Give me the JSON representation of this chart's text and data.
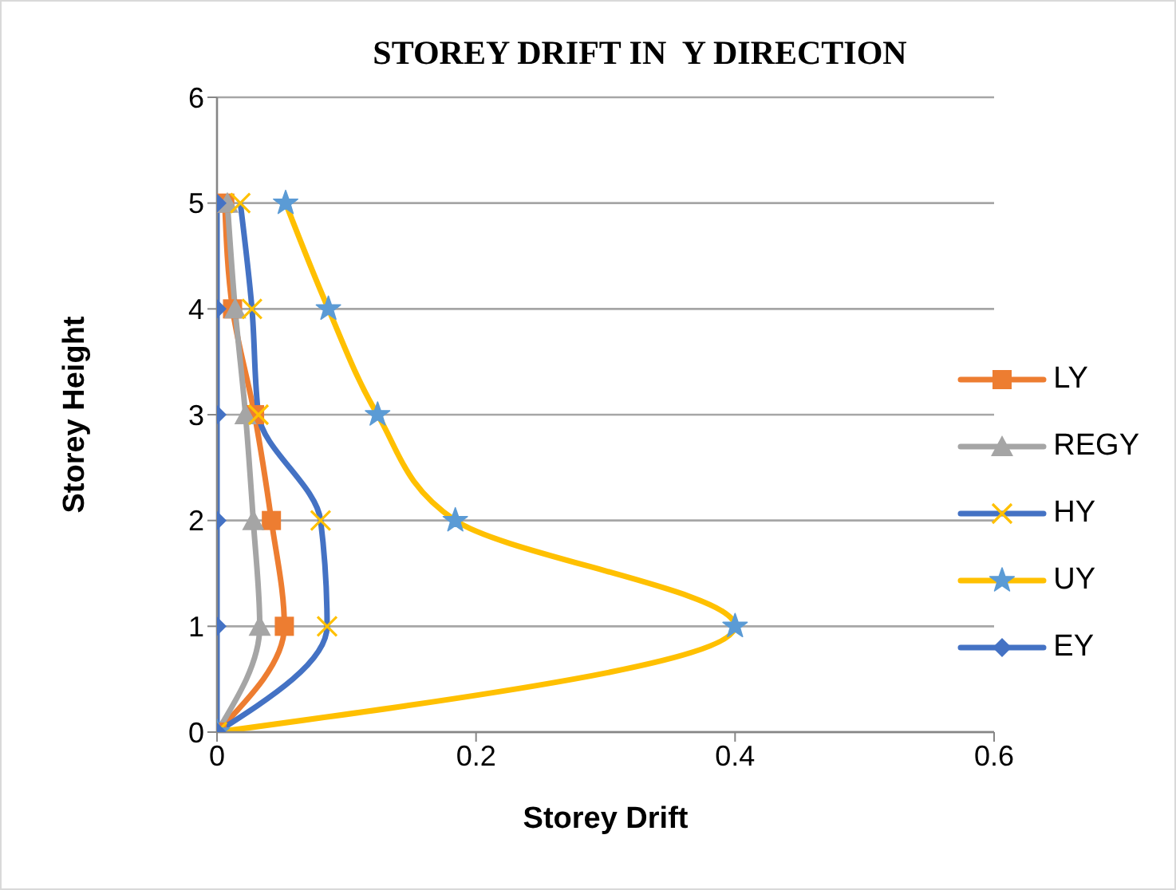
{
  "chart_data": {
    "type": "line",
    "title": "STOREY DRIFT IN  Y DIRECTION",
    "xlabel": "Storey Drift",
    "ylabel": "Storey Height",
    "xlim": [
      0,
      0.6
    ],
    "xticks": [
      0,
      0.2,
      0.4,
      0.6
    ],
    "ylim": [
      0,
      6
    ],
    "yticks": [
      0,
      1,
      2,
      3,
      4,
      5,
      6
    ],
    "grid": "y",
    "legend": "right",
    "series": [
      {
        "name": "LY",
        "color": "#ed7d31",
        "marker": "square",
        "x": [
          0,
          0.052,
          0.042,
          0.029,
          0.012,
          0.006
        ],
        "values": [
          0,
          1,
          2,
          3,
          4,
          5
        ]
      },
      {
        "name": "REGY",
        "color": "#a5a5a5",
        "marker": "triangle",
        "x": [
          0,
          0.033,
          0.028,
          0.022,
          0.014,
          0.008
        ],
        "values": [
          0,
          1,
          2,
          3,
          4,
          5
        ]
      },
      {
        "name": "HY",
        "color": "#4472c4",
        "marker": "cross",
        "colors": [
          "#ffc000",
          "#ffc000",
          "#ffc000",
          "#ffc000",
          "#ffc000",
          "#ffc000"
        ],
        "x": [
          0,
          0.085,
          0.08,
          0.032,
          0.027,
          0.018
        ],
        "values": [
          0,
          1,
          2,
          3,
          4,
          5
        ]
      },
      {
        "name": "UY",
        "color": "#ffc000",
        "marker": "star",
        "colors": [
          "#5b9bd5",
          "#5b9bd5",
          "#5b9bd5",
          "#5b9bd5",
          "#5b9bd5",
          "#5b9bd5"
        ],
        "x": [
          0,
          0.4,
          0.184,
          0.124,
          0.086,
          0.053
        ],
        "values": [
          0,
          1,
          2,
          3,
          4,
          5
        ]
      },
      {
        "name": "EY",
        "color": "#4472c4",
        "marker": "diamond",
        "x": [
          0,
          0,
          0,
          0,
          0,
          0
        ],
        "values": [
          0,
          1,
          2,
          3,
          4,
          5
        ]
      }
    ]
  }
}
